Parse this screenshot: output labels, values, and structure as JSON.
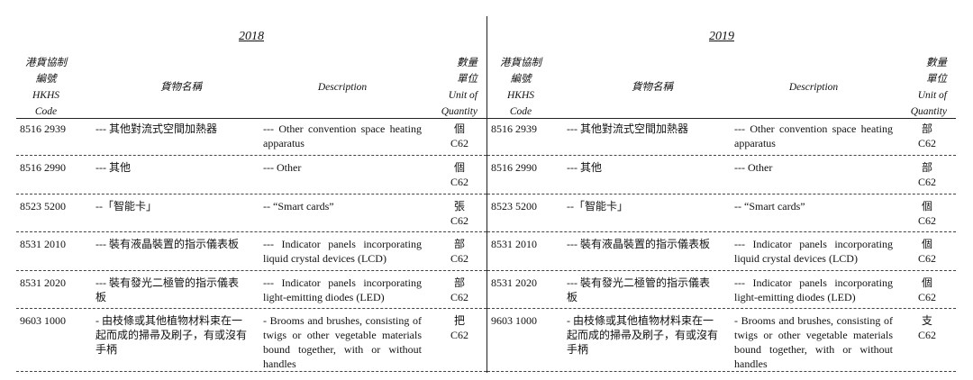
{
  "headers": {
    "hkhs": [
      "港貨協制",
      "編號",
      "HKHS",
      "Code"
    ],
    "goods": "貨物名稱",
    "description": "Description",
    "unit": [
      "數量",
      "單位",
      "Unit of",
      "Quantity"
    ]
  },
  "sections": [
    {
      "year": "2018",
      "rows": [
        {
          "code": "8516 2939",
          "goods": "--- 其他對流式空間加熱器",
          "desc": "--- Other convention space heating apparatus",
          "unit_zh": "個",
          "unit_code": "C62"
        },
        {
          "code": "8516 2990",
          "goods": "--- 其他",
          "desc": "--- Other",
          "unit_zh": "個",
          "unit_code": "C62"
        },
        {
          "code": "8523 5200",
          "goods": "--「智能卡」",
          "desc": "-- “Smart cards”",
          "unit_zh": "張",
          "unit_code": "C62"
        },
        {
          "code": "8531 2010",
          "goods": "--- 裝有液晶裝置的指示儀表板",
          "desc": "--- Indicator panels incorporating liquid crystal devices (LCD)",
          "unit_zh": "部",
          "unit_code": "C62"
        },
        {
          "code": "8531 2020",
          "goods": "--- 裝有發光二極管的指示儀表板",
          "desc": "--- Indicator panels incorporating light-emitting diodes (LED)",
          "unit_zh": "部",
          "unit_code": "C62"
        },
        {
          "code": "9603 1000",
          "goods": "- 由枝條或其他植物材料束在一起而成的掃帚及刷子，有或沒有手柄",
          "desc": "- Brooms and brushes, consisting of twigs or other vegetable materials bound together, with or without handles",
          "unit_zh": "把",
          "unit_code": "C62"
        }
      ]
    },
    {
      "year": "2019",
      "rows": [
        {
          "code": "8516 2939",
          "goods": "--- 其他對流式空間加熱器",
          "desc": "--- Other convention space heating apparatus",
          "unit_zh": "部",
          "unit_code": "C62"
        },
        {
          "code": "8516 2990",
          "goods": "--- 其他",
          "desc": "--- Other",
          "unit_zh": "部",
          "unit_code": "C62"
        },
        {
          "code": "8523 5200",
          "goods": "--「智能卡」",
          "desc": "-- “Smart cards”",
          "unit_zh": "個",
          "unit_code": "C62"
        },
        {
          "code": "8531 2010",
          "goods": "--- 裝有液晶裝置的指示儀表板",
          "desc": "--- Indicator panels incorporating liquid crystal devices (LCD)",
          "unit_zh": "個",
          "unit_code": "C62"
        },
        {
          "code": "8531 2020",
          "goods": "--- 裝有發光二極管的指示儀表板",
          "desc": "--- Indicator panels incorporating light-emitting diodes (LED)",
          "unit_zh": "個",
          "unit_code": "C62"
        },
        {
          "code": "9603 1000",
          "goods": "- 由枝條或其他植物材料束在一起而成的掃帚及刷子，有或沒有手柄",
          "desc": "- Brooms and brushes, consisting of twigs or other vegetable materials bound together, with or without handles",
          "unit_zh": "支",
          "unit_code": "C62"
        }
      ]
    }
  ]
}
